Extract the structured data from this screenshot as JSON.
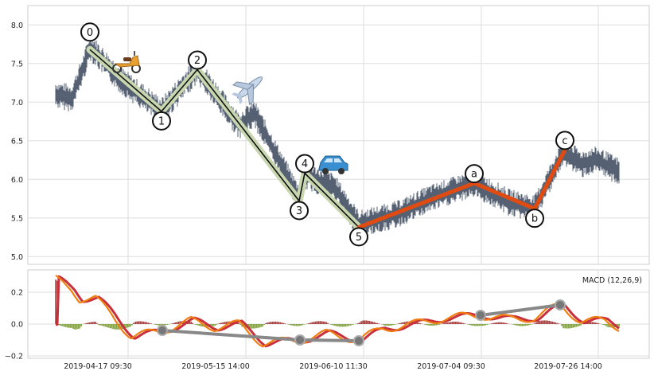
{
  "chart_data": [
    {
      "type": "line",
      "panel": "price",
      "x_labels": [
        "2019-04-17 09:30",
        "2019-05-15 14:00",
        "2019-06-10 11:30",
        "2019-07-04 09:30",
        "2019-07-26 14:00"
      ],
      "ylim": [
        4.9,
        8.25
      ],
      "yticks": [
        5.0,
        5.5,
        6.0,
        6.5,
        7.0,
        7.5,
        8.0
      ],
      "ytick_labels": [
        "5.0",
        "5.5",
        "6.0",
        "6.5",
        "7.0",
        "7.5",
        "8.0"
      ],
      "grid": true,
      "impulse_wave": [
        {
          "label": "0",
          "value": 7.68
        },
        {
          "label": "1",
          "value": 6.88
        },
        {
          "label": "2",
          "value": 7.42
        },
        {
          "label": "3",
          "value": 5.72
        },
        {
          "label": "4",
          "value": 6.08
        },
        {
          "label": "5",
          "value": 5.38
        }
      ],
      "corrective_wave": [
        {
          "label": "5",
          "value": 5.38
        },
        {
          "label": "a",
          "value": 5.95
        },
        {
          "label": "b",
          "value": 5.62
        },
        {
          "label": "c",
          "value": 6.38
        }
      ],
      "icons": [
        "scooter-icon",
        "airplane-icon",
        "car-icon"
      ]
    },
    {
      "type": "line",
      "panel": "macd",
      "label": "MACD (12,26,9)",
      "ylim": [
        -0.215,
        0.34
      ],
      "yticks": [
        -0.2,
        0.0,
        0.2
      ],
      "ytick_labels": [
        "−0.2",
        "0.0",
        "0.2"
      ],
      "divergence_lines": [
        {
          "points": [
            -0.04,
            -0.1,
            -0.105
          ]
        },
        {
          "points": [
            0.055,
            0.12
          ]
        }
      ]
    }
  ],
  "colors": {
    "impulse_line": "#111111",
    "impulse_halo": "#c8d7b0",
    "corrective": "#e04b12",
    "macd": "#f07f12",
    "signal": "#c9303c",
    "hist_pos": "#8b1a1a",
    "hist_neg": "#6b8e23",
    "divergence": "#888888",
    "price": "#2b3a50"
  }
}
